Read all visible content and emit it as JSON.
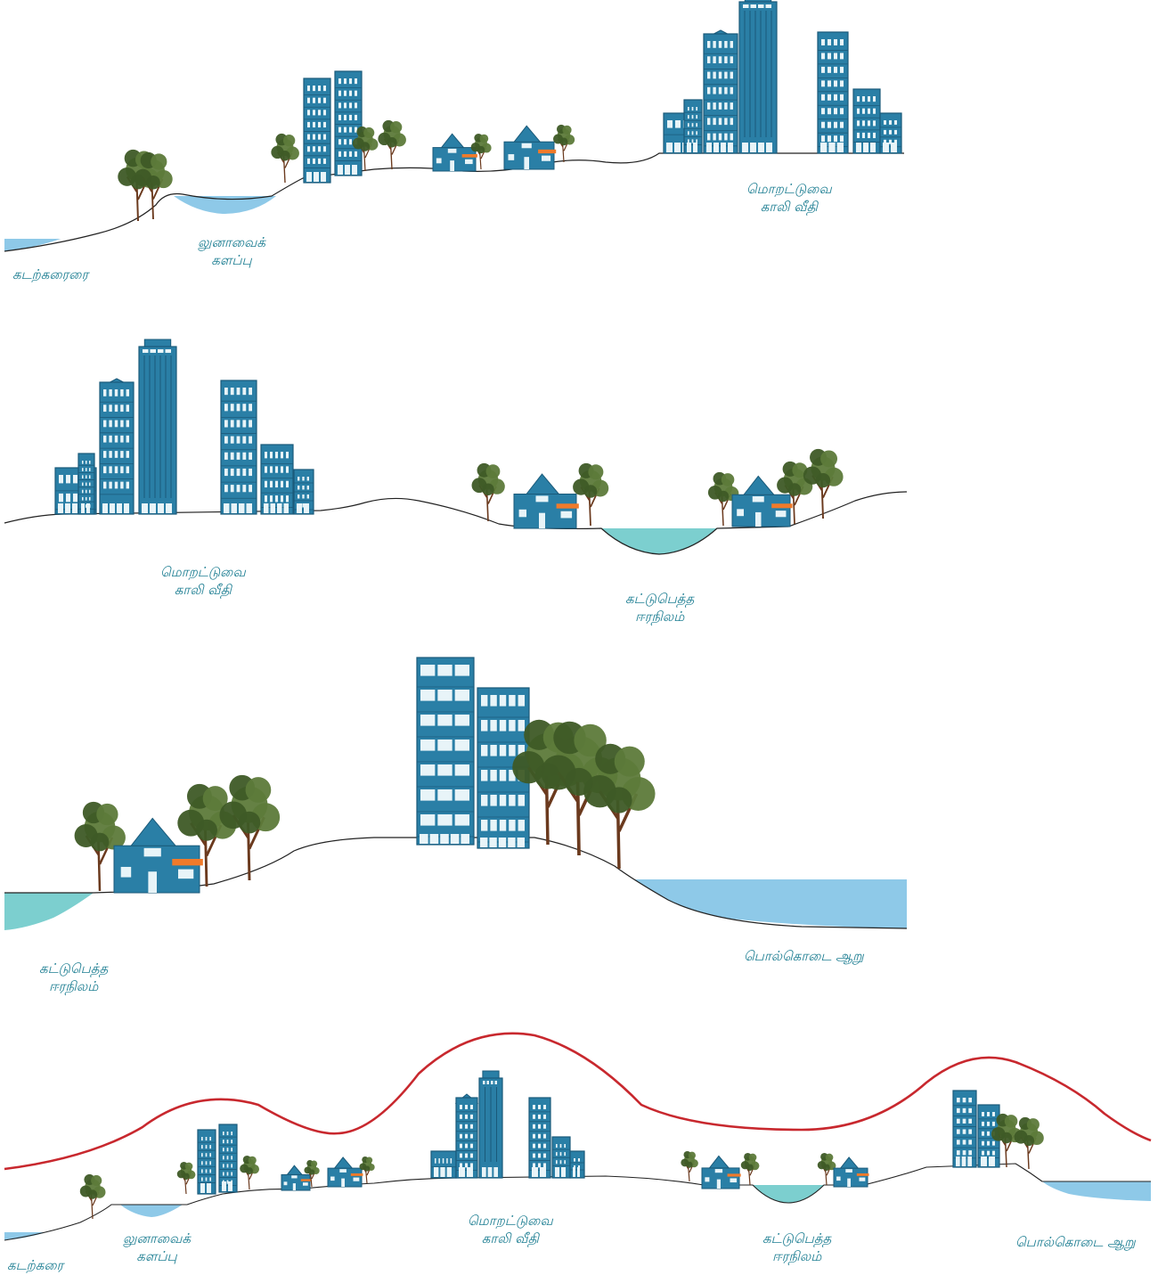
{
  "labels": {
    "p1_beach": "கடற்கரைரை",
    "p1_lagoon_1": "லுனாவைக்",
    "p1_lagoon_2": "களப்பு",
    "p1_road_1": "மொறட்டுவை",
    "p1_road_2": "காலி வீதி",
    "p2_road_1": "மொறட்டுவை",
    "p2_road_2": "காலி வீதி",
    "p2_wet_1": "கட்டுபெத்த",
    "p2_wet_2": "ஈரநிலம்",
    "p3_wet_1": "கட்டுபெத்த",
    "p3_wet_2": "ஈரநிலம்",
    "p3_river": "பொல்கொடை ஆறு",
    "p4_beach": "கடற்கரை",
    "p4_lagoon_1": "லுனாவைக்",
    "p4_lagoon_2": "களப்பு",
    "p4_road_1": "மொறட்டுவை",
    "p4_road_2": "காலி வீதி",
    "p4_wet_1": "கட்டுபெத்த",
    "p4_wet_2": "ஈரநிலம்",
    "p4_river": "பொல்கொடை ஆறு"
  },
  "colors": {
    "label_text": "#1f7f93",
    "building": "#2a7fa6",
    "building_dark": "#1a5a7a",
    "window": "#e8f4f8",
    "roof_accent": "#f07a2a",
    "tree_foliage": "#5d7a3a",
    "tree_foliage_dark": "#3e5a26",
    "trunk": "#6b3a1e",
    "water_blue": "#8ec9e8",
    "water_teal": "#7ccfcf",
    "ground_line": "#222222",
    "profile_curve": "#c8282e"
  }
}
